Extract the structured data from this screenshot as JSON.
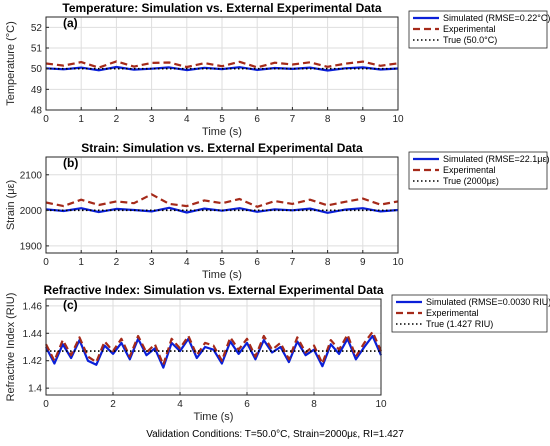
{
  "figure": {
    "caption": "Validation Conditions: T=50.0°C, Strain=2000με, RI=1.427"
  },
  "chart_data": [
    {
      "type": "line",
      "panel_label": "(a)",
      "title": "Temperature: Simulation vs. External Experimental Data",
      "xlabel": "Time (s)",
      "ylabel": "Temperature (°C)",
      "xlim": [
        0,
        10
      ],
      "ylim": [
        48,
        52.5
      ],
      "x_ticks": [
        0,
        1,
        2,
        3,
        4,
        5,
        6,
        7,
        8,
        9,
        10
      ],
      "x_tick_labels": [
        "0",
        "1",
        "2",
        "3",
        "4",
        "5",
        "6",
        "7",
        "8",
        "9",
        "10"
      ],
      "y_ticks": [
        48,
        49,
        50,
        51,
        52
      ],
      "y_tick_labels": [
        "48",
        "49",
        "50",
        "51",
        "52"
      ],
      "grid": true,
      "legend_position": "outside-right",
      "x": [
        0,
        0.5,
        1,
        1.5,
        2,
        2.5,
        3,
        3.5,
        4,
        4.5,
        5,
        5.5,
        6,
        6.5,
        7,
        7.5,
        8,
        8.5,
        9,
        9.5,
        10
      ],
      "series": [
        {
          "name": "Simulated (RMSE=0.22°C)",
          "color": "#0a1fd8",
          "style": "solid",
          "values": [
            50.02,
            49.97,
            50.05,
            49.92,
            50.08,
            49.95,
            50.0,
            50.06,
            49.93,
            50.04,
            49.98,
            50.07,
            49.94,
            50.03,
            49.99,
            50.05,
            49.91,
            50.02,
            50.06,
            49.96,
            50.01
          ]
        },
        {
          "name": "Experimental",
          "color": "#a52a1a",
          "style": "dashed",
          "values": [
            50.25,
            50.15,
            50.32,
            50.05,
            50.35,
            50.1,
            50.28,
            50.3,
            50.08,
            50.27,
            50.12,
            50.33,
            50.06,
            50.29,
            50.2,
            50.31,
            50.09,
            50.24,
            50.34,
            50.14,
            50.26
          ]
        },
        {
          "name": "True (50.0°C)",
          "color": "#000000",
          "style": "dotted",
          "values": [
            50,
            50,
            50,
            50,
            50,
            50,
            50,
            50,
            50,
            50,
            50,
            50,
            50,
            50,
            50,
            50,
            50,
            50,
            50,
            50,
            50
          ]
        }
      ]
    },
    {
      "type": "line",
      "panel_label": "(b)",
      "title": "Strain: Simulation vs. External Experimental Data",
      "xlabel": "Time (s)",
      "ylabel": "Strain (με)",
      "xlim": [
        0,
        10
      ],
      "ylim": [
        1880,
        2150
      ],
      "x_ticks": [
        0,
        1,
        2,
        3,
        4,
        5,
        6,
        7,
        8,
        9,
        10
      ],
      "x_tick_labels": [
        "0",
        "1",
        "2",
        "3",
        "4",
        "5",
        "6",
        "7",
        "8",
        "9",
        "10"
      ],
      "y_ticks": [
        1900,
        2000,
        2100
      ],
      "y_tick_labels": [
        "1900",
        "2000",
        "2100"
      ],
      "grid": true,
      "legend_position": "outside-right",
      "x": [
        0,
        0.5,
        1,
        1.5,
        2,
        2.5,
        3,
        3.5,
        4,
        4.5,
        5,
        5.5,
        6,
        6.5,
        7,
        7.5,
        8,
        8.5,
        9,
        9.5,
        10
      ],
      "series": [
        {
          "name": "Simulated (RMSE=22.1με)",
          "color": "#0a1fd8",
          "style": "solid",
          "values": [
            2003,
            1998,
            2006,
            1995,
            2004,
            2001,
            1997,
            2007,
            1994,
            2005,
            1999,
            2006,
            1996,
            2003,
            2000,
            2005,
            1993,
            2002,
            2006,
            1997,
            2001
          ]
        },
        {
          "name": "Experimental",
          "color": "#a52a1a",
          "style": "dashed",
          "values": [
            2022,
            2012,
            2030,
            2015,
            2025,
            2020,
            2045,
            2018,
            2012,
            2028,
            2020,
            2032,
            2010,
            2026,
            2018,
            2030,
            2014,
            2024,
            2033,
            2016,
            2025
          ]
        },
        {
          "name": "True (2000με)",
          "color": "#000000",
          "style": "dotted",
          "values": [
            2000,
            2000,
            2000,
            2000,
            2000,
            2000,
            2000,
            2000,
            2000,
            2000,
            2000,
            2000,
            2000,
            2000,
            2000,
            2000,
            2000,
            2000,
            2000,
            2000,
            2000
          ]
        }
      ]
    },
    {
      "type": "line",
      "panel_label": "(c)",
      "title": "Refractive Index: Simulation vs. External Experimental Data",
      "xlabel": "Time (s)",
      "ylabel": "Refractive Index (RIU)",
      "xlim": [
        0,
        10
      ],
      "ylim": [
        1.395,
        1.465
      ],
      "x_ticks": [
        0,
        2,
        4,
        6,
        8,
        10
      ],
      "x_tick_labels": [
        "0",
        "2",
        "4",
        "6",
        "8",
        "10"
      ],
      "y_ticks": [
        1.4,
        1.42,
        1.44,
        1.46
      ],
      "y_tick_labels": [
        "1.4",
        "1.42",
        "1.44",
        "1.46"
      ],
      "grid": true,
      "legend_position": "outside-right",
      "x": [
        0,
        0.25,
        0.5,
        0.75,
        1,
        1.25,
        1.5,
        1.75,
        2,
        2.25,
        2.5,
        2.75,
        3,
        3.25,
        3.5,
        3.75,
        4,
        4.25,
        4.5,
        4.75,
        5,
        5.25,
        5.5,
        5.75,
        6,
        6.25,
        6.5,
        6.75,
        7,
        7.25,
        7.5,
        7.75,
        8,
        8.25,
        8.5,
        8.75,
        9,
        9.25,
        9.5,
        9.75,
        10
      ],
      "series": [
        {
          "name": "Simulated (RMSE=0.0030 RIU)",
          "color": "#0a1fd8",
          "style": "solid",
          "values": [
            1.43,
            1.418,
            1.432,
            1.422,
            1.435,
            1.42,
            1.417,
            1.431,
            1.425,
            1.433,
            1.421,
            1.436,
            1.424,
            1.429,
            1.415,
            1.433,
            1.427,
            1.436,
            1.422,
            1.43,
            1.428,
            1.418,
            1.434,
            1.425,
            1.433,
            1.421,
            1.435,
            1.426,
            1.43,
            1.419,
            1.434,
            1.424,
            1.428,
            1.416,
            1.432,
            1.425,
            1.436,
            1.421,
            1.43,
            1.438,
            1.424
          ]
        },
        {
          "name": "Experimental",
          "color": "#a52a1a",
          "style": "dashed",
          "values": [
            1.432,
            1.42,
            1.435,
            1.424,
            1.437,
            1.423,
            1.419,
            1.434,
            1.427,
            1.436,
            1.423,
            1.438,
            1.426,
            1.432,
            1.417,
            1.436,
            1.429,
            1.438,
            1.424,
            1.433,
            1.431,
            1.42,
            1.437,
            1.428,
            1.436,
            1.423,
            1.438,
            1.428,
            1.433,
            1.421,
            1.437,
            1.426,
            1.431,
            1.418,
            1.435,
            1.428,
            1.439,
            1.423,
            1.433,
            1.441,
            1.427
          ]
        },
        {
          "name": "True (1.427 RIU)",
          "color": "#000000",
          "style": "dotted",
          "values": [
            1.427,
            1.427,
            1.427,
            1.427,
            1.427,
            1.427,
            1.427,
            1.427,
            1.427,
            1.427,
            1.427,
            1.427,
            1.427,
            1.427,
            1.427,
            1.427,
            1.427,
            1.427,
            1.427,
            1.427,
            1.427,
            1.427,
            1.427,
            1.427,
            1.427,
            1.427,
            1.427,
            1.427,
            1.427,
            1.427,
            1.427,
            1.427,
            1.427,
            1.427,
            1.427,
            1.427,
            1.427,
            1.427,
            1.427,
            1.427,
            1.427
          ]
        }
      ]
    }
  ]
}
